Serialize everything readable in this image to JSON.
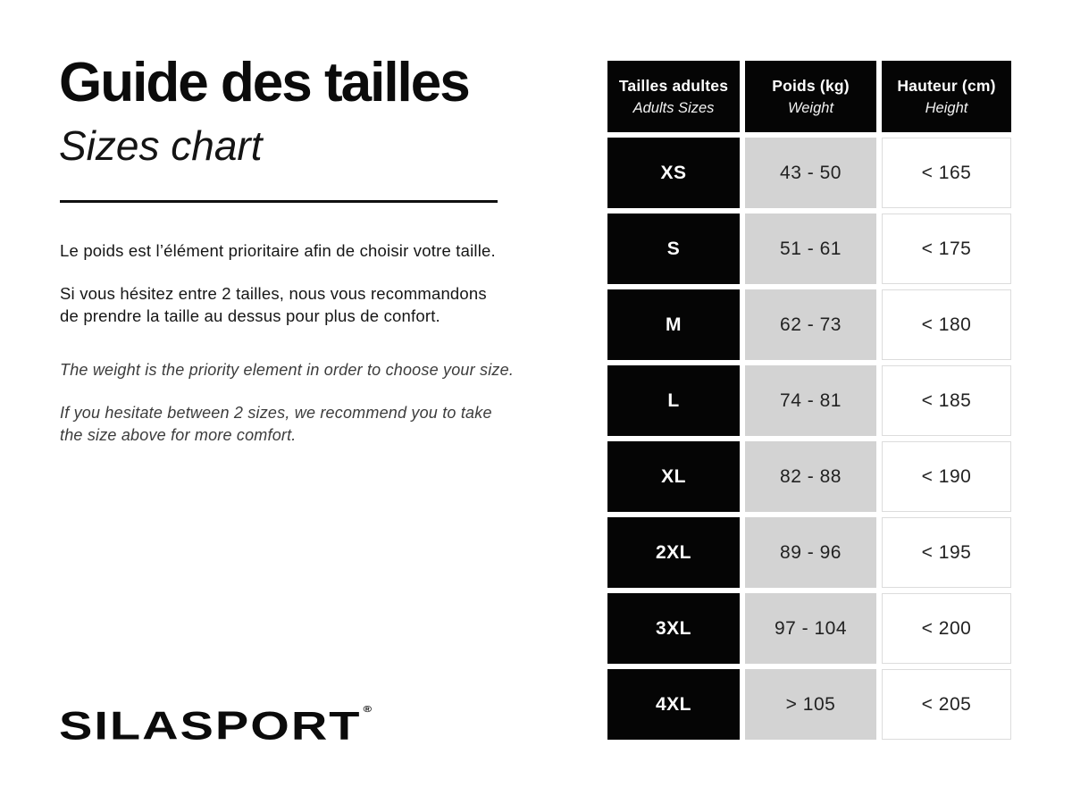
{
  "left": {
    "title_fr": "Guide des tailles",
    "title_en": "Sizes chart",
    "paragraphs_fr": [
      {
        "lines": [
          "Le poids est l’élément prioritaire afin de choisir votre taille."
        ]
      },
      {
        "lines": [
          "Si vous hésitez entre 2 tailles, nous vous recommandons",
          "de prendre la taille au dessus pour plus de confort."
        ]
      }
    ],
    "paragraphs_en": [
      {
        "lines": [
          "The weight is the priority element in order to choose your size."
        ]
      },
      {
        "lines": [
          "If you hesitate between 2 sizes, we recommend you to take",
          "the size above for more comfort."
        ]
      }
    ]
  },
  "footer": {
    "brand": "SILASPORT",
    "brand_mark": "®"
  },
  "table": {
    "headers": [
      {
        "fr": "Tailles adultes",
        "en": "Adults Sizes"
      },
      {
        "fr": "Poids (kg)",
        "en": "Weight"
      },
      {
        "fr": "Hauteur (cm)",
        "en": "Height"
      }
    ],
    "rows": [
      {
        "size": "XS",
        "weight": "43 - 50",
        "height": "< 165"
      },
      {
        "size": "S",
        "weight": "51 - 61",
        "height": "< 175"
      },
      {
        "size": "M",
        "weight": "62 - 73",
        "height": "< 180"
      },
      {
        "size": "L",
        "weight": "74 - 81",
        "height": "< 185"
      },
      {
        "size": "XL",
        "weight": "82 - 88",
        "height": "< 190"
      },
      {
        "size": "2XL",
        "weight": "89 - 96",
        "height": "< 195"
      },
      {
        "size": "3XL",
        "weight": "97 - 104",
        "height": "< 200"
      },
      {
        "size": "4XL",
        "weight": "> 105",
        "height": "< 205"
      }
    ]
  },
  "colors": {
    "black_cell": "#050505",
    "gray_cell": "#d3d3d3",
    "white_cell_border": "#dcdcdc",
    "text": "#1b1b1b"
  }
}
